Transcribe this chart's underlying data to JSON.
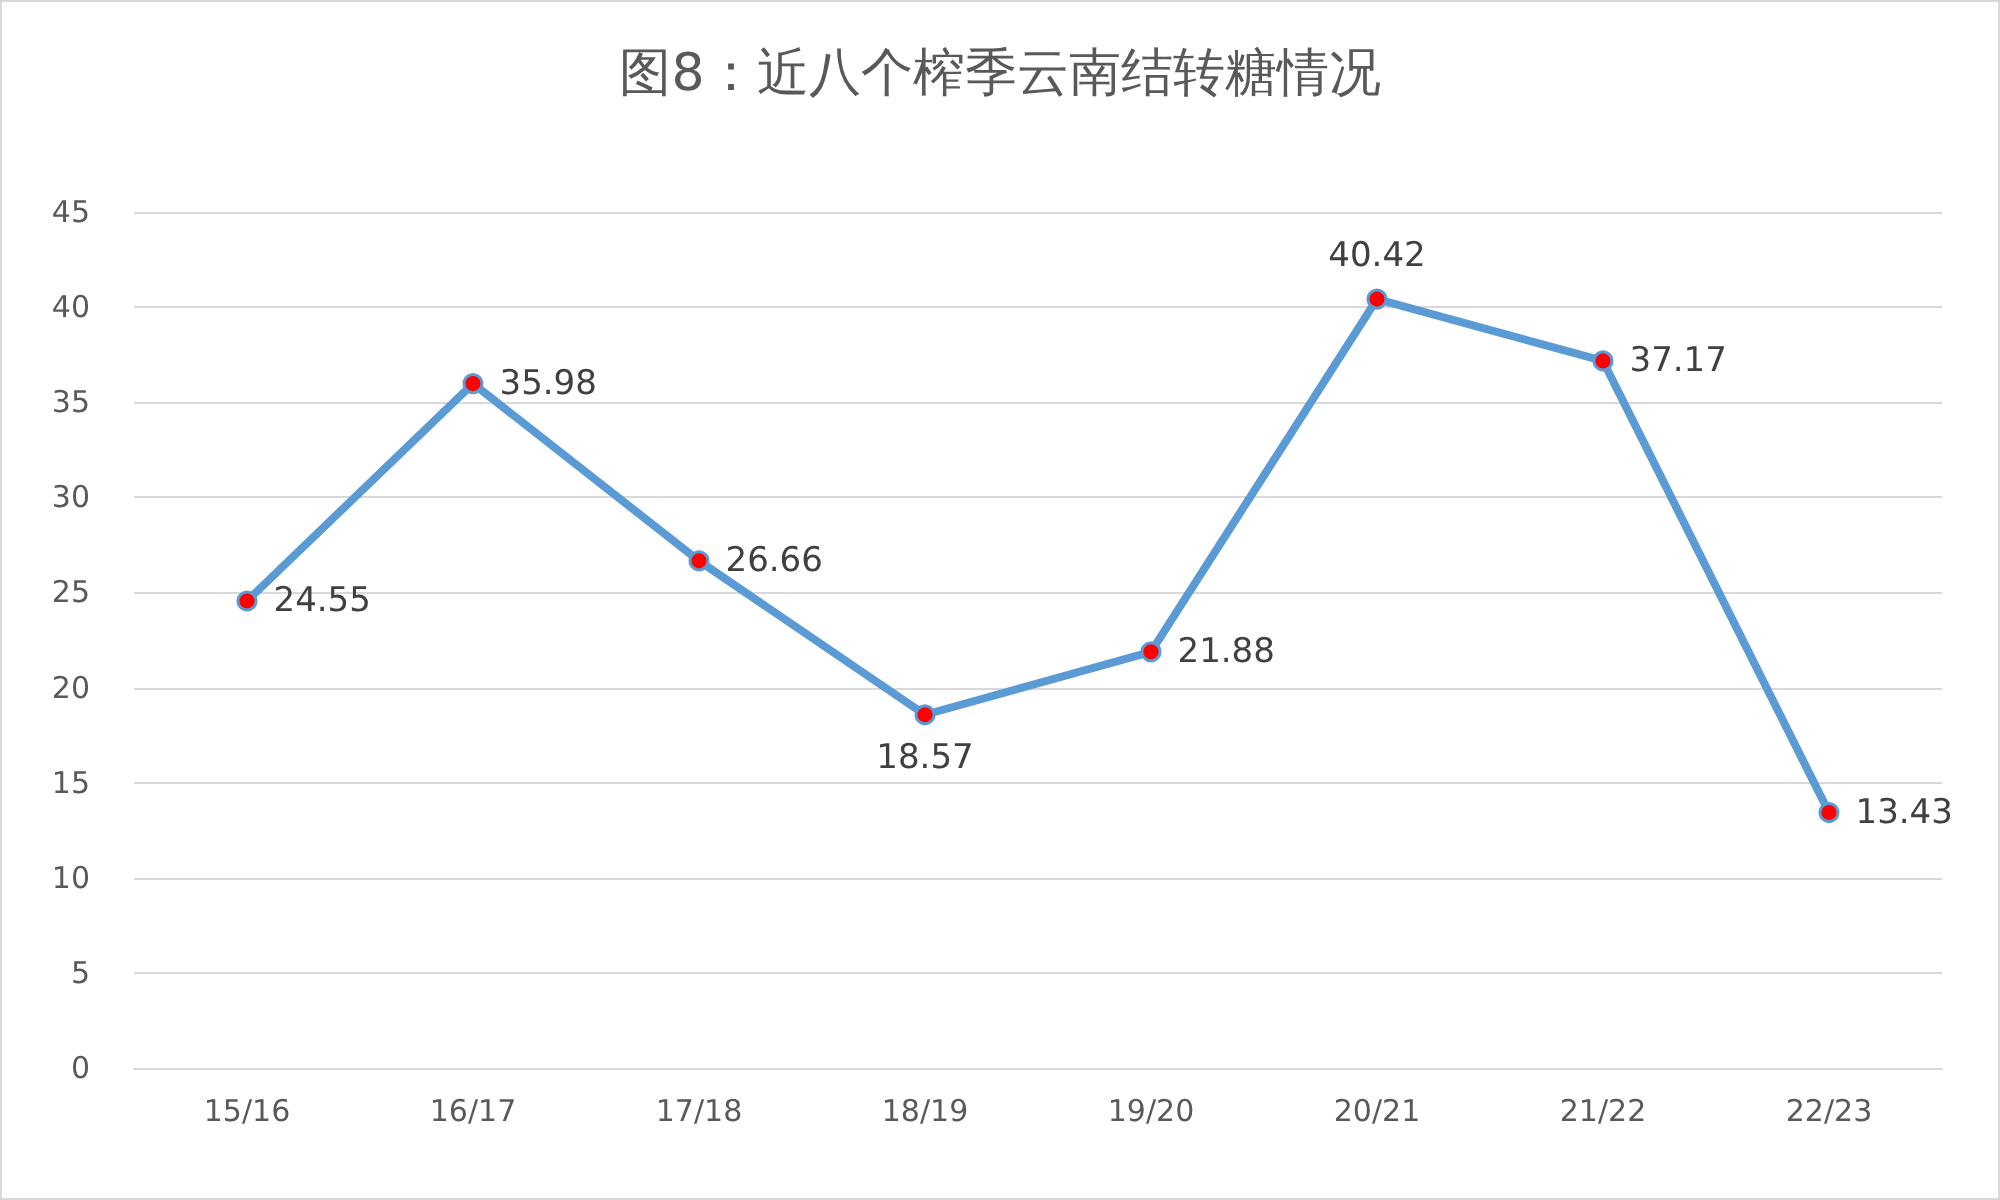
{
  "chart_data": {
    "type": "line",
    "title": "图8：近八个榨季云南结转糖情况",
    "categories": [
      "15/16",
      "16/17",
      "17/18",
      "18/19",
      "19/20",
      "20/21",
      "21/22",
      "22/23"
    ],
    "series": [
      {
        "color": "#5b9bd5",
        "colors": [
          "#ff0000",
          "#ff0000",
          "#ff0000",
          "#ff0000",
          "#ff0000",
          "#ff0000",
          "#ff0000",
          "#ff0000"
        ],
        "values": [
          24.55,
          35.98,
          26.66,
          18.57,
          21.88,
          40.42,
          37.17,
          13.43
        ]
      }
    ],
    "ylim": [
      0,
      45
    ],
    "yticks": [
      0,
      5,
      10,
      15,
      20,
      25,
      30,
      35,
      40,
      45
    ],
    "grid": "y",
    "marker": "circle",
    "line_style": "solid",
    "data_labels": true
  }
}
